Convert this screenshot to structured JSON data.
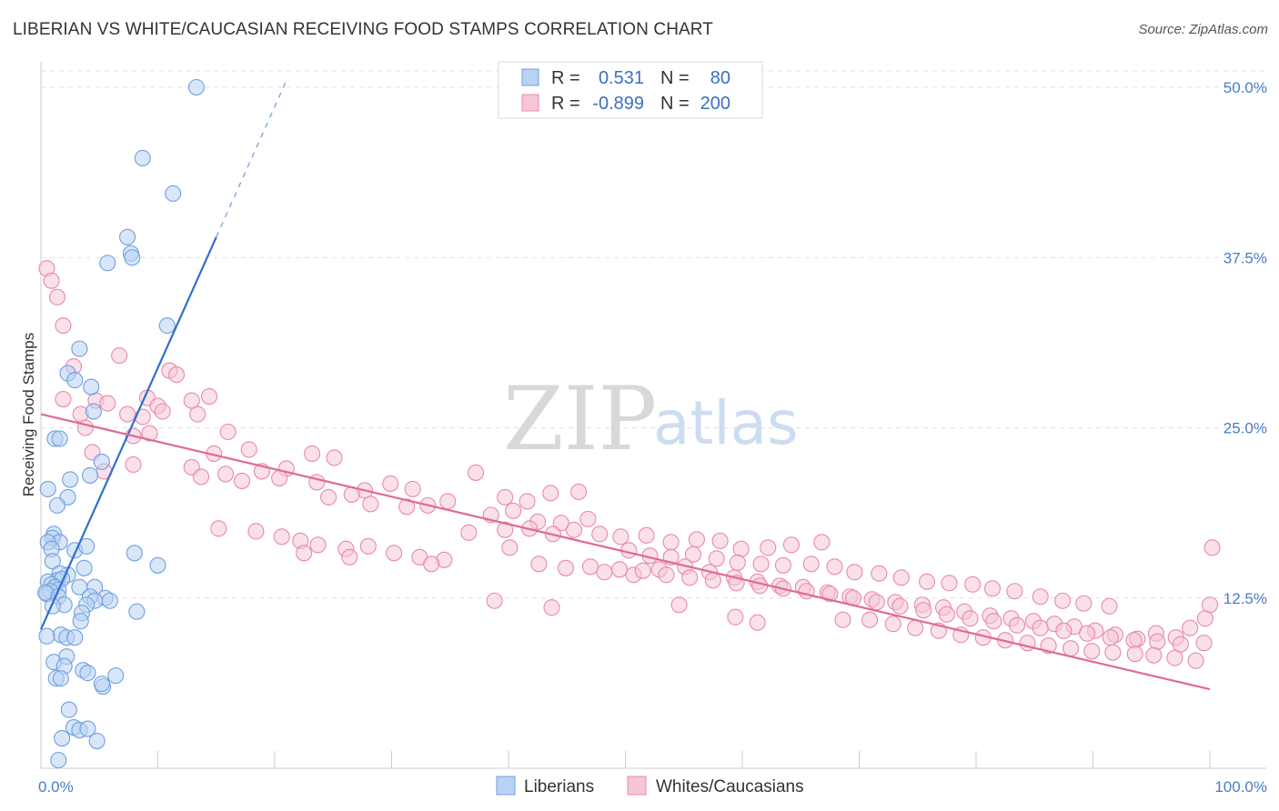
{
  "title": "LIBERIAN VS WHITE/CAUCASIAN RECEIVING FOOD STAMPS CORRELATION CHART",
  "source": "Source: ZipAtlas.com",
  "watermark": {
    "zip": "ZIP",
    "atlas": "atlas"
  },
  "colors": {
    "liberian": "#6fa0e0",
    "liberian_fill": "#b9d1f3",
    "liberian_line": "#2f6fcc",
    "white": "#e88aaa",
    "white_fill": "#f6c6d6",
    "white_line": "#e06a94",
    "tick_label": "#4a7cc7",
    "grid": "#e0e0e0"
  },
  "legend": {
    "rows": [
      {
        "r_label": "R =",
        "r_value": "0.531",
        "n_label": "N =",
        "n_value": "80"
      },
      {
        "r_label": "R =",
        "r_value": "-0.899",
        "n_label": "N =",
        "n_value": "200"
      }
    ]
  },
  "bottom_legend": [
    "Liberians",
    "Whites/Caucasians"
  ],
  "chart_data": {
    "type": "scatter",
    "title": "LIBERIAN VS WHITE/CAUCASIAN RECEIVING FOOD STAMPS CORRELATION CHART",
    "xlabel": "",
    "ylabel": "Receiving Food Stamps",
    "xlim": [
      0,
      100
    ],
    "ylim": [
      0,
      50
    ],
    "x_tick_labels": [
      {
        "value": 0,
        "label": "0.0%"
      },
      {
        "value": 100,
        "label": "100.0%"
      }
    ],
    "y_tick_labels": [
      {
        "value": 12.5,
        "label": "12.5%"
      },
      {
        "value": 25.0,
        "label": "25.0%"
      },
      {
        "value": 37.5,
        "label": "37.5%"
      },
      {
        "value": 50.0,
        "label": "50.0%"
      }
    ],
    "grid": "horizontal dashed",
    "legend_position": "top-center",
    "series": [
      {
        "name": "Liberians",
        "trend": {
          "x1": 0,
          "y1": 10.2,
          "x2": 15,
          "y2": 39.0,
          "dash_x2": 21,
          "dash_y2": 50.5
        },
        "points": [
          [
            13.3,
            50.0
          ],
          [
            8.7,
            44.8
          ],
          [
            11.3,
            42.2
          ],
          [
            7.4,
            39.0
          ],
          [
            7.7,
            37.8
          ],
          [
            5.7,
            37.1
          ],
          [
            7.8,
            37.5
          ],
          [
            10.8,
            32.5
          ],
          [
            3.3,
            30.8
          ],
          [
            2.3,
            29.0
          ],
          [
            2.9,
            28.5
          ],
          [
            4.3,
            28.0
          ],
          [
            4.5,
            26.2
          ],
          [
            1.2,
            24.2
          ],
          [
            1.6,
            24.2
          ],
          [
            5.2,
            22.5
          ],
          [
            4.2,
            21.5
          ],
          [
            2.5,
            21.2
          ],
          [
            0.6,
            20.5
          ],
          [
            2.3,
            19.9
          ],
          [
            1.4,
            19.3
          ],
          [
            1.1,
            17.2
          ],
          [
            1.0,
            16.9
          ],
          [
            1.6,
            16.6
          ],
          [
            0.6,
            16.6
          ],
          [
            0.9,
            16.1
          ],
          [
            2.9,
            16.0
          ],
          [
            3.9,
            16.3
          ],
          [
            8.0,
            15.8
          ],
          [
            10.0,
            14.9
          ],
          [
            1.0,
            15.2
          ],
          [
            2.3,
            14.2
          ],
          [
            1.6,
            14.3
          ],
          [
            3.7,
            14.7
          ],
          [
            1.4,
            13.8
          ],
          [
            1.8,
            13.9
          ],
          [
            0.6,
            13.7
          ],
          [
            0.9,
            13.5
          ],
          [
            1.2,
            13.3
          ],
          [
            1.5,
            13.1
          ],
          [
            0.8,
            13.0
          ],
          [
            0.5,
            12.8
          ],
          [
            0.4,
            12.9
          ],
          [
            1.5,
            12.6
          ],
          [
            3.3,
            13.3
          ],
          [
            4.6,
            13.3
          ],
          [
            4.2,
            12.6
          ],
          [
            5.5,
            12.5
          ],
          [
            5.9,
            12.3
          ],
          [
            4.6,
            12.3
          ],
          [
            3.9,
            12.0
          ],
          [
            2.0,
            12.0
          ],
          [
            1.0,
            11.9
          ],
          [
            8.2,
            11.5
          ],
          [
            3.5,
            11.4
          ],
          [
            3.4,
            10.8
          ],
          [
            1.7,
            9.8
          ],
          [
            2.2,
            9.6
          ],
          [
            0.5,
            9.7
          ],
          [
            2.9,
            9.6
          ],
          [
            1.1,
            7.8
          ],
          [
            2.2,
            8.2
          ],
          [
            2.0,
            7.5
          ],
          [
            3.6,
            7.2
          ],
          [
            4.0,
            7.0
          ],
          [
            1.3,
            6.6
          ],
          [
            1.7,
            6.6
          ],
          [
            5.3,
            6.0
          ],
          [
            5.2,
            6.2
          ],
          [
            6.4,
            6.8
          ],
          [
            2.4,
            4.3
          ],
          [
            2.8,
            3.0
          ],
          [
            3.3,
            2.8
          ],
          [
            4.0,
            2.9
          ],
          [
            1.8,
            2.2
          ],
          [
            4.8,
            2.0
          ],
          [
            1.5,
            0.6
          ]
        ]
      },
      {
        "name": "Whites/Caucasians",
        "trend": {
          "x1": 0,
          "y1": 26.0,
          "x2": 100,
          "y2": 5.8
        },
        "points": [
          [
            0.5,
            36.7
          ],
          [
            0.9,
            35.8
          ],
          [
            1.4,
            34.6
          ],
          [
            1.9,
            32.5
          ],
          [
            6.7,
            30.3
          ],
          [
            2.8,
            29.5
          ],
          [
            11.0,
            29.2
          ],
          [
            11.6,
            28.9
          ],
          [
            1.9,
            27.1
          ],
          [
            9.1,
            27.2
          ],
          [
            12.9,
            27.0
          ],
          [
            14.4,
            27.3
          ],
          [
            4.7,
            27.0
          ],
          [
            5.7,
            26.8
          ],
          [
            10.0,
            26.6
          ],
          [
            3.4,
            26.0
          ],
          [
            7.4,
            26.0
          ],
          [
            10.4,
            26.2
          ],
          [
            13.4,
            26.0
          ],
          [
            8.7,
            25.8
          ],
          [
            3.8,
            25.0
          ],
          [
            7.9,
            24.4
          ],
          [
            9.3,
            24.6
          ],
          [
            16.0,
            24.7
          ],
          [
            4.4,
            23.2
          ],
          [
            17.8,
            23.4
          ],
          [
            12.9,
            22.1
          ],
          [
            7.9,
            22.3
          ],
          [
            5.4,
            21.8
          ],
          [
            14.8,
            23.1
          ],
          [
            18.9,
            21.8
          ],
          [
            21.0,
            22.0
          ],
          [
            23.2,
            23.1
          ],
          [
            25.1,
            22.8
          ],
          [
            15.8,
            21.6
          ],
          [
            13.7,
            21.4
          ],
          [
            17.2,
            21.1
          ],
          [
            20.4,
            21.3
          ],
          [
            23.6,
            21.0
          ],
          [
            27.7,
            20.4
          ],
          [
            29.9,
            20.9
          ],
          [
            31.8,
            20.5
          ],
          [
            24.6,
            19.9
          ],
          [
            26.6,
            20.1
          ],
          [
            28.2,
            19.4
          ],
          [
            31.3,
            19.2
          ],
          [
            33.1,
            19.3
          ],
          [
            34.8,
            19.6
          ],
          [
            37.2,
            21.7
          ],
          [
            39.7,
            19.9
          ],
          [
            41.6,
            19.6
          ],
          [
            43.6,
            20.2
          ],
          [
            46.0,
            20.3
          ],
          [
            38.5,
            18.6
          ],
          [
            40.4,
            18.9
          ],
          [
            42.5,
            18.1
          ],
          [
            44.5,
            18.0
          ],
          [
            46.8,
            18.3
          ],
          [
            36.6,
            17.3
          ],
          [
            39.7,
            17.5
          ],
          [
            41.8,
            17.6
          ],
          [
            43.8,
            17.2
          ],
          [
            45.6,
            17.5
          ],
          [
            47.8,
            17.2
          ],
          [
            49.6,
            17.0
          ],
          [
            51.8,
            17.1
          ],
          [
            53.9,
            16.6
          ],
          [
            56.1,
            16.8
          ],
          [
            58.1,
            16.7
          ],
          [
            59.9,
            16.1
          ],
          [
            62.2,
            16.2
          ],
          [
            64.2,
            16.4
          ],
          [
            66.8,
            16.6
          ],
          [
            50.3,
            16.0
          ],
          [
            52.1,
            15.6
          ],
          [
            53.9,
            15.5
          ],
          [
            55.8,
            15.7
          ],
          [
            57.8,
            15.4
          ],
          [
            59.6,
            15.1
          ],
          [
            61.6,
            15.0
          ],
          [
            63.5,
            14.9
          ],
          [
            65.9,
            15.0
          ],
          [
            67.9,
            14.8
          ],
          [
            69.6,
            14.4
          ],
          [
            71.7,
            14.3
          ],
          [
            73.6,
            14.0
          ],
          [
            75.8,
            13.7
          ],
          [
            77.7,
            13.6
          ],
          [
            79.7,
            13.5
          ],
          [
            81.4,
            13.2
          ],
          [
            83.3,
            13.0
          ],
          [
            85.5,
            12.6
          ],
          [
            87.4,
            12.3
          ],
          [
            89.2,
            12.1
          ],
          [
            91.4,
            11.9
          ],
          [
            48.2,
            14.4
          ],
          [
            50.7,
            14.2
          ],
          [
            52.9,
            14.6
          ],
          [
            55.1,
            14.8
          ],
          [
            57.2,
            14.4
          ],
          [
            59.3,
            14.0
          ],
          [
            61.3,
            13.7
          ],
          [
            63.2,
            13.4
          ],
          [
            65.2,
            13.3
          ],
          [
            67.3,
            12.9
          ],
          [
            69.2,
            12.6
          ],
          [
            71.1,
            12.4
          ],
          [
            73.1,
            12.2
          ],
          [
            75.4,
            12.0
          ],
          [
            77.2,
            11.8
          ],
          [
            79.0,
            11.5
          ],
          [
            81.2,
            11.2
          ],
          [
            83.0,
            11.0
          ],
          [
            84.9,
            10.8
          ],
          [
            86.7,
            10.6
          ],
          [
            88.4,
            10.4
          ],
          [
            90.2,
            10.1
          ],
          [
            91.9,
            9.8
          ],
          [
            93.8,
            9.5
          ],
          [
            95.4,
            9.9
          ],
          [
            97.1,
            9.6
          ],
          [
            98.3,
            10.3
          ],
          [
            99.6,
            11.0
          ],
          [
            100.0,
            12.0
          ],
          [
            100.2,
            16.2
          ],
          [
            15.2,
            17.6
          ],
          [
            18.4,
            17.4
          ],
          [
            20.6,
            17.0
          ],
          [
            22.2,
            16.7
          ],
          [
            23.7,
            16.4
          ],
          [
            26.1,
            16.1
          ],
          [
            28.0,
            16.3
          ],
          [
            30.2,
            15.8
          ],
          [
            32.4,
            15.5
          ],
          [
            34.5,
            15.3
          ],
          [
            22.5,
            15.8
          ],
          [
            26.4,
            15.5
          ],
          [
            33.4,
            15.0
          ],
          [
            40.1,
            16.2
          ],
          [
            42.6,
            15.0
          ],
          [
            44.9,
            14.7
          ],
          [
            47.0,
            14.8
          ],
          [
            49.5,
            14.6
          ],
          [
            51.5,
            14.5
          ],
          [
            53.5,
            14.2
          ],
          [
            55.5,
            14.0
          ],
          [
            57.5,
            13.8
          ],
          [
            59.5,
            13.6
          ],
          [
            61.5,
            13.4
          ],
          [
            63.5,
            13.2
          ],
          [
            65.5,
            13.0
          ],
          [
            67.5,
            12.8
          ],
          [
            69.5,
            12.5
          ],
          [
            71.5,
            12.2
          ],
          [
            73.5,
            11.9
          ],
          [
            75.5,
            11.6
          ],
          [
            77.5,
            11.3
          ],
          [
            79.5,
            11.0
          ],
          [
            81.5,
            10.8
          ],
          [
            83.5,
            10.5
          ],
          [
            85.5,
            10.3
          ],
          [
            87.5,
            10.1
          ],
          [
            89.5,
            9.9
          ],
          [
            91.5,
            9.6
          ],
          [
            93.5,
            9.4
          ],
          [
            95.5,
            9.3
          ],
          [
            97.5,
            9.1
          ],
          [
            99.5,
            9.2
          ],
          [
            68.6,
            10.9
          ],
          [
            70.9,
            10.9
          ],
          [
            72.9,
            10.6
          ],
          [
            74.8,
            10.3
          ],
          [
            76.8,
            10.1
          ],
          [
            78.7,
            9.8
          ],
          [
            80.6,
            9.6
          ],
          [
            82.5,
            9.4
          ],
          [
            84.4,
            9.2
          ],
          [
            86.2,
            9.0
          ],
          [
            88.1,
            8.8
          ],
          [
            89.9,
            8.6
          ],
          [
            91.7,
            8.5
          ],
          [
            93.6,
            8.4
          ],
          [
            95.2,
            8.3
          ],
          [
            97.0,
            8.1
          ],
          [
            98.8,
            7.9
          ],
          [
            38.8,
            12.3
          ],
          [
            54.6,
            12.0
          ],
          [
            43.7,
            11.8
          ],
          [
            59.4,
            11.1
          ],
          [
            61.3,
            10.7
          ]
        ]
      }
    ]
  }
}
